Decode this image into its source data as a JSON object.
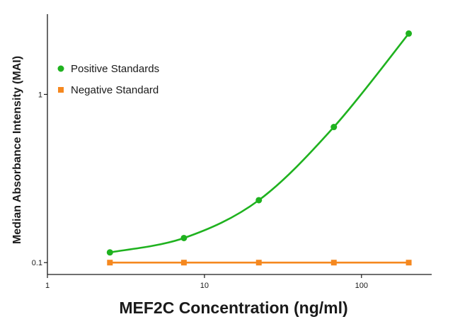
{
  "chart_data": {
    "type": "line",
    "xlabel": "MEF2C Concentration (ng/ml)",
    "ylabel": "Median Absorbance Intensity (MAI)",
    "x_scale": "log",
    "y_scale": "log",
    "xlim": [
      1,
      280
    ],
    "ylim": [
      0.085,
      3.0
    ],
    "x_ticks": [
      {
        "value": 1,
        "label": "1"
      },
      {
        "value": 10,
        "label": "10"
      },
      {
        "value": 100,
        "label": "100"
      }
    ],
    "y_ticks": [
      {
        "value": 0.1,
        "label": "0.1"
      },
      {
        "value": 1,
        "label": "1"
      }
    ],
    "grid": false,
    "legend_position": "top-left",
    "series": [
      {
        "name": "Positive Standards",
        "color": "#1fb21f",
        "marker": "circle",
        "x": [
          2.5,
          7.4,
          22.2,
          66.7,
          200
        ],
        "y": [
          0.115,
          0.14,
          0.235,
          0.64,
          2.3
        ]
      },
      {
        "name": "Negative Standard",
        "color": "#f5881f",
        "marker": "square",
        "x": [
          2.5,
          7.4,
          22.2,
          66.7,
          200
        ],
        "y": [
          0.1,
          0.1,
          0.1,
          0.1,
          0.1
        ]
      }
    ]
  }
}
